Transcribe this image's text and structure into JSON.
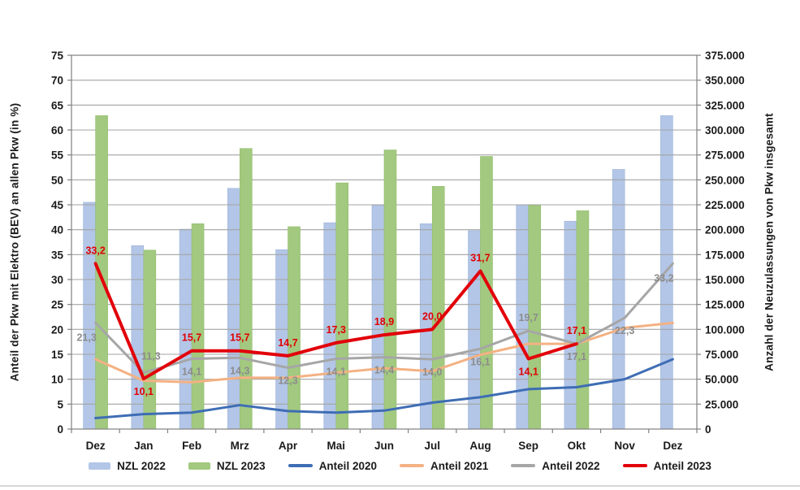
{
  "page": {
    "background": "#ffffff"
  },
  "chart_data": {
    "type": "bar",
    "combo": "bars (right axis) + lines (left axis)",
    "categories": [
      "Dez",
      "Jan",
      "Feb",
      "Mrz",
      "Apr",
      "Mai",
      "Jun",
      "Jul",
      "Aug",
      "Sep",
      "Okt",
      "Nov",
      "Dez"
    ],
    "left_axis": {
      "title": "Anteil der Pkw mit Elektro (BEV) an allen Pkw (in %)",
      "min": 0,
      "max": 75,
      "step": 5,
      "tick_labels": [
        "0",
        "5",
        "10",
        "15",
        "20",
        "25",
        "30",
        "35",
        "40",
        "45",
        "50",
        "55",
        "60",
        "65",
        "70",
        "75"
      ]
    },
    "right_axis": {
      "title": "Anzahl der Neuzulassungen von Pkw insgesamt",
      "min": 0,
      "max": 375000,
      "step": 25000,
      "tick_labels": [
        "0",
        "25.000",
        "50.000",
        "75.000",
        "100.000",
        "125.000",
        "150.000",
        "175.000",
        "200.000",
        "225.000",
        "250.000",
        "275.000",
        "300.000",
        "325.000",
        "350.000",
        "375.000"
      ]
    },
    "grid": true,
    "legend_position": "bottom",
    "bar_series": [
      {
        "name": "NZL 2022",
        "axis": "right",
        "color": "#b3c6e7",
        "edge": "#9db4d9",
        "values": [
          227500,
          184000,
          200500,
          241500,
          180000,
          207000,
          224500,
          206000,
          199000,
          225000,
          208500,
          260500,
          314500
        ]
      },
      {
        "name": "NZL 2023",
        "axis": "right",
        "color": "#a2c97f",
        "edge": "#92bd6d",
        "values": [
          314500,
          179500,
          206000,
          281500,
          203000,
          247000,
          280000,
          243500,
          273500,
          224500,
          219000
        ]
      }
    ],
    "line_series": [
      {
        "name": "Anteil 2020",
        "axis": "left",
        "color": "#3e6db5",
        "width": 3,
        "values": [
          2.2,
          3.0,
          3.3,
          4.8,
          3.6,
          3.3,
          3.7,
          5.3,
          6.4,
          8.0,
          8.4,
          10.0,
          14.0
        ]
      },
      {
        "name": "Anteil 2021",
        "axis": "left",
        "color": "#f4b183",
        "width": 3,
        "values": [
          14.0,
          9.7,
          9.4,
          10.3,
          10.3,
          11.3,
          12.2,
          11.6,
          14.9,
          17.1,
          17.1,
          20.3,
          21.3
        ]
      },
      {
        "name": "Anteil 2022",
        "axis": "left",
        "color": "#a6a6a6",
        "width": 3,
        "values": [
          21.3,
          11.3,
          14.1,
          14.3,
          12.3,
          14.1,
          14.4,
          14.0,
          16.1,
          19.7,
          17.1,
          22.3,
          33.2
        ],
        "labels": [
          "21,3",
          "11,3",
          "14,1",
          "14,3",
          "12,3",
          "14,1",
          "14,4",
          "14,0",
          "16,1",
          "19,7",
          "17,1",
          "22,3",
          "33,2"
        ],
        "label_pos": [
          "bl",
          "ar",
          "b",
          "b",
          "b",
          "b",
          "b",
          "b",
          "b",
          "a",
          "b",
          "b",
          "bl"
        ],
        "label_color": "#8c8c8c"
      },
      {
        "name": "Anteil 2023",
        "axis": "left",
        "color": "#e2000a",
        "width": 4,
        "values": [
          33.2,
          10.1,
          15.7,
          15.7,
          14.7,
          17.3,
          18.9,
          20.0,
          31.7,
          14.1,
          17.1
        ],
        "labels": [
          "33,2",
          "10,1",
          "15,7",
          "15,7",
          "14,7",
          "17,3",
          "18,9",
          "20,0",
          "31,7",
          "14,1",
          "17,1"
        ],
        "label_pos": [
          "a",
          "b",
          "a",
          "a",
          "a",
          "a",
          "a",
          "a",
          "a",
          "b",
          "a"
        ],
        "label_color": "#e00000"
      }
    ]
  },
  "legend": {
    "items": [
      {
        "label": "NZL 2022",
        "swatch": "bar",
        "color": "#b3c6e7"
      },
      {
        "label": "NZL 2023",
        "swatch": "bar",
        "color": "#a2c97f"
      },
      {
        "label": "Anteil 2020",
        "swatch": "line",
        "color": "#3e6db5"
      },
      {
        "label": "Anteil 2021",
        "swatch": "line",
        "color": "#f4b183"
      },
      {
        "label": "Anteil 2022",
        "swatch": "line",
        "color": "#a6a6a6"
      },
      {
        "label": "Anteil 2023",
        "swatch": "line",
        "color": "#e2000a"
      }
    ]
  },
  "style": {
    "gridline_color": "#a3a3a3",
    "axis_color": "#808080",
    "tick_text_color": "#1a1a1a",
    "divider_color": "#d8d8d8"
  }
}
